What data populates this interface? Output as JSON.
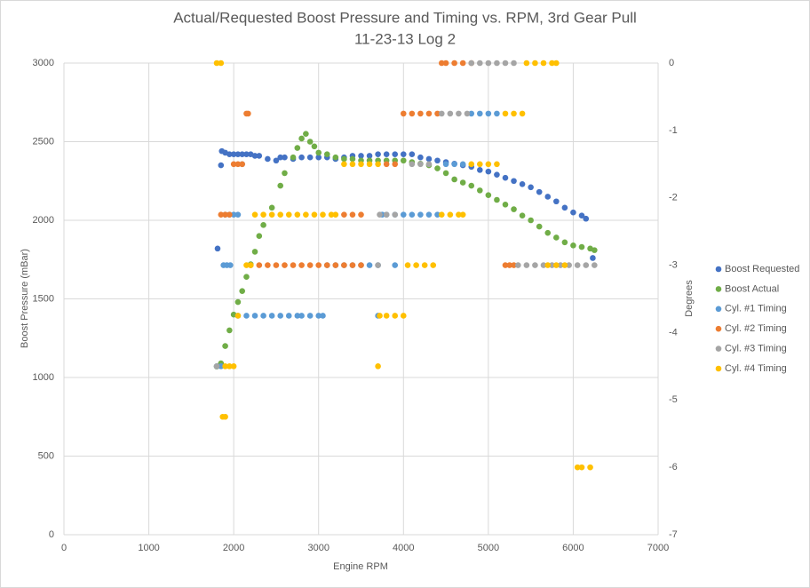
{
  "chart_data": {
    "type": "scatter",
    "title": "Actual/Requested Boost Pressure and Timing vs. RPM, 3rd Gear Pull",
    "subtitle": "11-23-13 Log 2",
    "x_label": "Engine RPM",
    "y_label": "Boost Pressure (mBar)",
    "y2_label": "Degrees",
    "xlim": [
      0,
      7000
    ],
    "xticks": [
      0,
      1000,
      2000,
      3000,
      4000,
      5000,
      6000,
      7000
    ],
    "ylim": [
      0,
      3000
    ],
    "yticks": [
      0,
      500,
      1000,
      1500,
      2000,
      2500,
      3000
    ],
    "y2lim": [
      -7,
      0
    ],
    "y2ticks": [
      -7,
      -6,
      -5,
      -4,
      -3,
      -2,
      -1,
      0
    ],
    "grid": true,
    "legend": "right",
    "series": [
      {
        "name": "Boost Requested",
        "color": "#4472c4",
        "x": [
          1810,
          1850,
          1860,
          1900,
          1950,
          2000,
          2050,
          2100,
          2150,
          2200,
          2250,
          2300,
          2400,
          2500,
          2550,
          2600,
          2700,
          2800,
          2900,
          3000,
          3100,
          3200,
          3300,
          3400,
          3500,
          3600,
          3700,
          3800,
          3900,
          4000,
          4100,
          4200,
          4300,
          4400,
          4500,
          4600,
          4700,
          4800,
          4900,
          5000,
          5100,
          5200,
          5300,
          5400,
          5500,
          5600,
          5700,
          5800,
          5900,
          6000,
          6100,
          6150,
          6230
        ],
        "values": [
          1820,
          2350,
          2440,
          2430,
          2420,
          2420,
          2420,
          2420,
          2420,
          2420,
          2410,
          2410,
          2390,
          2380,
          2400,
          2400,
          2390,
          2400,
          2400,
          2400,
          2400,
          2390,
          2400,
          2410,
          2410,
          2410,
          2420,
          2420,
          2420,
          2420,
          2420,
          2400,
          2390,
          2380,
          2370,
          2360,
          2350,
          2340,
          2320,
          2310,
          2290,
          2270,
          2250,
          2230,
          2210,
          2180,
          2150,
          2120,
          2080,
          2050,
          2030,
          2010,
          1760
        ]
      },
      {
        "name": "Boost Actual",
        "color": "#70ad47",
        "x": [
          1800,
          1850,
          1900,
          1950,
          2000,
          2050,
          2100,
          2150,
          2200,
          2250,
          2300,
          2350,
          2450,
          2550,
          2600,
          2700,
          2750,
          2800,
          2850,
          2900,
          2950,
          3000,
          3100,
          3200,
          3300,
          3400,
          3500,
          3600,
          3700,
          3800,
          3900,
          4000,
          4100,
          4200,
          4300,
          4400,
          4500,
          4600,
          4700,
          4800,
          4900,
          5000,
          5100,
          5200,
          5300,
          5400,
          5500,
          5600,
          5700,
          5800,
          5900,
          6000,
          6100,
          6200,
          6250
        ],
        "values": [
          1070,
          1090,
          1200,
          1300,
          1400,
          1480,
          1550,
          1640,
          1720,
          1800,
          1900,
          1970,
          2080,
          2220,
          2300,
          2400,
          2460,
          2520,
          2550,
          2500,
          2470,
          2430,
          2420,
          2400,
          2390,
          2390,
          2380,
          2380,
          2380,
          2380,
          2380,
          2380,
          2370,
          2360,
          2350,
          2330,
          2300,
          2260,
          2240,
          2220,
          2190,
          2160,
          2130,
          2100,
          2070,
          2030,
          2000,
          1960,
          1920,
          1890,
          1860,
          1840,
          1830,
          1820,
          1810
        ]
      },
      {
        "name": "Cyl. #1 Timing",
        "color": "#5b9bd5",
        "axis": "y2",
        "x": [
          1800,
          1850,
          1880,
          1920,
          1960,
          1900,
          1950,
          2000,
          2050,
          2100,
          2050,
          2150,
          2250,
          2350,
          2450,
          2550,
          2650,
          2750,
          2800,
          2900,
          3000,
          3050,
          3100,
          3200,
          3300,
          3400,
          3500,
          3600,
          3700,
          3900,
          3700,
          3750,
          3800,
          3900,
          4000,
          4100,
          4200,
          4300,
          4400,
          4500,
          4600,
          4700,
          4800,
          4900,
          5000,
          5100
        ],
        "values": [
          -4.5,
          -4.5,
          -3,
          -3,
          -3,
          -2.25,
          -2.25,
          -2.25,
          -2.25,
          -1.5,
          -3.75,
          -3.75,
          -3.75,
          -3.75,
          -3.75,
          -3.75,
          -3.75,
          -3.75,
          -3.75,
          -3.75,
          -3.75,
          -3.75,
          -3,
          -3,
          -3,
          -3,
          -3,
          -3,
          -3,
          -3,
          -3.75,
          -2.25,
          -2.25,
          -2.25,
          -2.25,
          -2.25,
          -2.25,
          -2.25,
          -2.25,
          -1.5,
          -1.5,
          -1.5,
          -0.75,
          -0.75,
          -0.75,
          -0.75
        ]
      },
      {
        "name": "Cyl. #2 Timing",
        "color": "#ed7d31",
        "axis": "y2",
        "x": [
          1850,
          1900,
          1950,
          2000,
          2050,
          2100,
          2150,
          2170,
          2200,
          2300,
          2400,
          2500,
          2600,
          2700,
          2800,
          2900,
          3000,
          3100,
          3200,
          3300,
          3400,
          3500,
          3300,
          3400,
          3500,
          3800,
          3900,
          4000,
          4100,
          4200,
          4300,
          4400,
          4450,
          4500,
          4600,
          4700,
          4800,
          5200,
          5250,
          5300
        ],
        "values": [
          -2.25,
          -2.25,
          -2.25,
          -1.5,
          -1.5,
          -1.5,
          -0.75,
          -0.75,
          -3,
          -3,
          -3,
          -3,
          -3,
          -3,
          -3,
          -3,
          -3,
          -3,
          -3,
          -3,
          -3,
          -3,
          -2.25,
          -2.25,
          -2.25,
          -1.5,
          -1.5,
          -0.75,
          -0.75,
          -0.75,
          -0.75,
          -0.75,
          0,
          0,
          0,
          0,
          0,
          -3,
          -3,
          -3
        ]
      },
      {
        "name": "Cyl. #3 Timing",
        "color": "#a5a5a5",
        "axis": "y2",
        "x": [
          1800,
          3700,
          3720,
          3800,
          3900,
          4100,
          4200,
          4300,
          4450,
          4550,
          4650,
          4750,
          4800,
          4900,
          5000,
          5100,
          5200,
          5300,
          5350,
          5450,
          5550,
          5650,
          5750,
          5850,
          5950,
          6050,
          6150,
          6250
        ],
        "values": [
          -4.5,
          -3,
          -2.25,
          -2.25,
          -2.25,
          -1.5,
          -1.5,
          -1.5,
          -0.75,
          -0.75,
          -0.75,
          -0.75,
          0,
          0,
          0,
          0,
          0,
          0,
          -3,
          -3,
          -3,
          -3,
          -3,
          -3,
          -3,
          -3,
          -3,
          -3
        ]
      },
      {
        "name": "Cyl. #4 Timing",
        "color": "#ffc000",
        "axis": "y2",
        "x": [
          1800,
          1850,
          1870,
          1900,
          1900,
          1950,
          2000,
          2050,
          2150,
          2200,
          2250,
          2350,
          2450,
          2550,
          2650,
          2750,
          2850,
          2950,
          3050,
          3150,
          3200,
          3300,
          3400,
          3500,
          3600,
          3700,
          3700,
          3720,
          3800,
          3900,
          4000,
          4050,
          4150,
          4250,
          4350,
          4450,
          4550,
          4650,
          4700,
          4800,
          4900,
          5000,
          5100,
          5200,
          5300,
          5400,
          5450,
          5550,
          5650,
          5750,
          5800,
          5700,
          5800,
          5900,
          6050,
          6100,
          6200
        ],
        "values": [
          0,
          0,
          -5.25,
          -5.25,
          -4.5,
          -4.5,
          -4.5,
          -3.75,
          -3,
          -3,
          -2.25,
          -2.25,
          -2.25,
          -2.25,
          -2.25,
          -2.25,
          -2.25,
          -2.25,
          -2.25,
          -2.25,
          -2.25,
          -1.5,
          -1.5,
          -1.5,
          -1.5,
          -1.5,
          -4.5,
          -3.75,
          -3.75,
          -3.75,
          -3.75,
          -3,
          -3,
          -3,
          -3,
          -2.25,
          -2.25,
          -2.25,
          -2.25,
          -1.5,
          -1.5,
          -1.5,
          -1.5,
          -0.75,
          -0.75,
          -0.75,
          0,
          0,
          0,
          0,
          0,
          -3,
          -3,
          -3,
          -6,
          -6,
          -6
        ]
      }
    ]
  }
}
